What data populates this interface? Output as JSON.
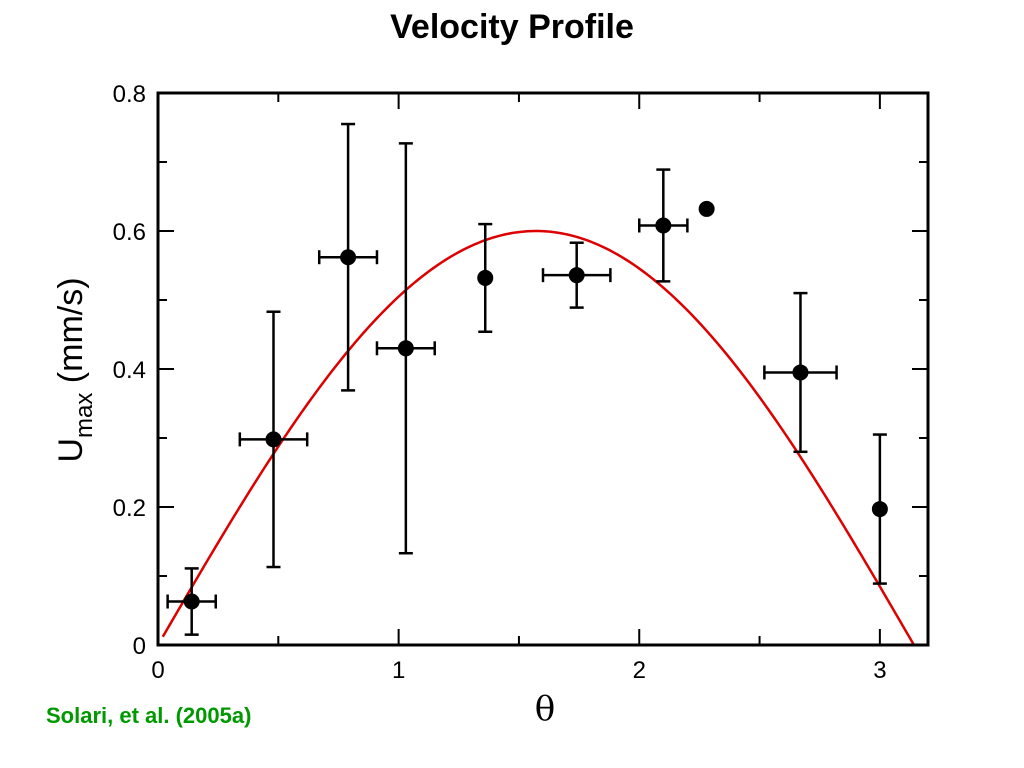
{
  "chart_data": {
    "type": "scatter",
    "title": "Velocity Profile",
    "xlabel": "θ",
    "ylabel_main": "U",
    "ylabel_sub": "max",
    "ylabel_unit": "(mm/s)",
    "xlim": [
      0,
      3.2
    ],
    "ylim": [
      0,
      0.8
    ],
    "x_ticks": [
      0,
      1,
      2,
      3
    ],
    "x_tick_labels": [
      "0",
      "1",
      "2",
      "3"
    ],
    "y_ticks": [
      0,
      0.2,
      0.4,
      0.6,
      0.8
    ],
    "y_tick_labels": [
      "0",
      "0.2",
      "0.4",
      "0.6",
      "0.8"
    ],
    "grid": false,
    "points": [
      {
        "x": 0.14,
        "y": 0.063,
        "xerr": 0.1,
        "yerr": 0.048
      },
      {
        "x": 0.48,
        "y": 0.298,
        "xerr": 0.14,
        "yerr": 0.185
      },
      {
        "x": 0.79,
        "y": 0.562,
        "xerr": 0.12,
        "yerr": 0.193
      },
      {
        "x": 1.03,
        "y": 0.43,
        "xerr": 0.12,
        "yerr": 0.297
      },
      {
        "x": 1.36,
        "y": 0.532,
        "xerr": 0.0,
        "yerr": 0.078
      },
      {
        "x": 1.74,
        "y": 0.536,
        "xerr": 0.14,
        "yerr": 0.047
      },
      {
        "x": 2.1,
        "y": 0.608,
        "xerr": 0.1,
        "yerr": 0.081
      },
      {
        "x": 2.28,
        "y": 0.632,
        "xerr": 0.0,
        "yerr": 0.0
      },
      {
        "x": 2.67,
        "y": 0.395,
        "xerr": 0.15,
        "yerr": 0.115
      },
      {
        "x": 3.0,
        "y": 0.197,
        "xerr": 0.0,
        "yerr": 0.108
      }
    ],
    "fit_curve": {
      "type": "function",
      "form": "0.6*sin(x)",
      "color": "#dd0000",
      "x_range": [
        0,
        3.1416
      ]
    },
    "marker_color": "#000000"
  },
  "credit": "Solari, et al. (2005a)",
  "colors": {
    "fit": "#dd0000",
    "credit": "#009900"
  }
}
